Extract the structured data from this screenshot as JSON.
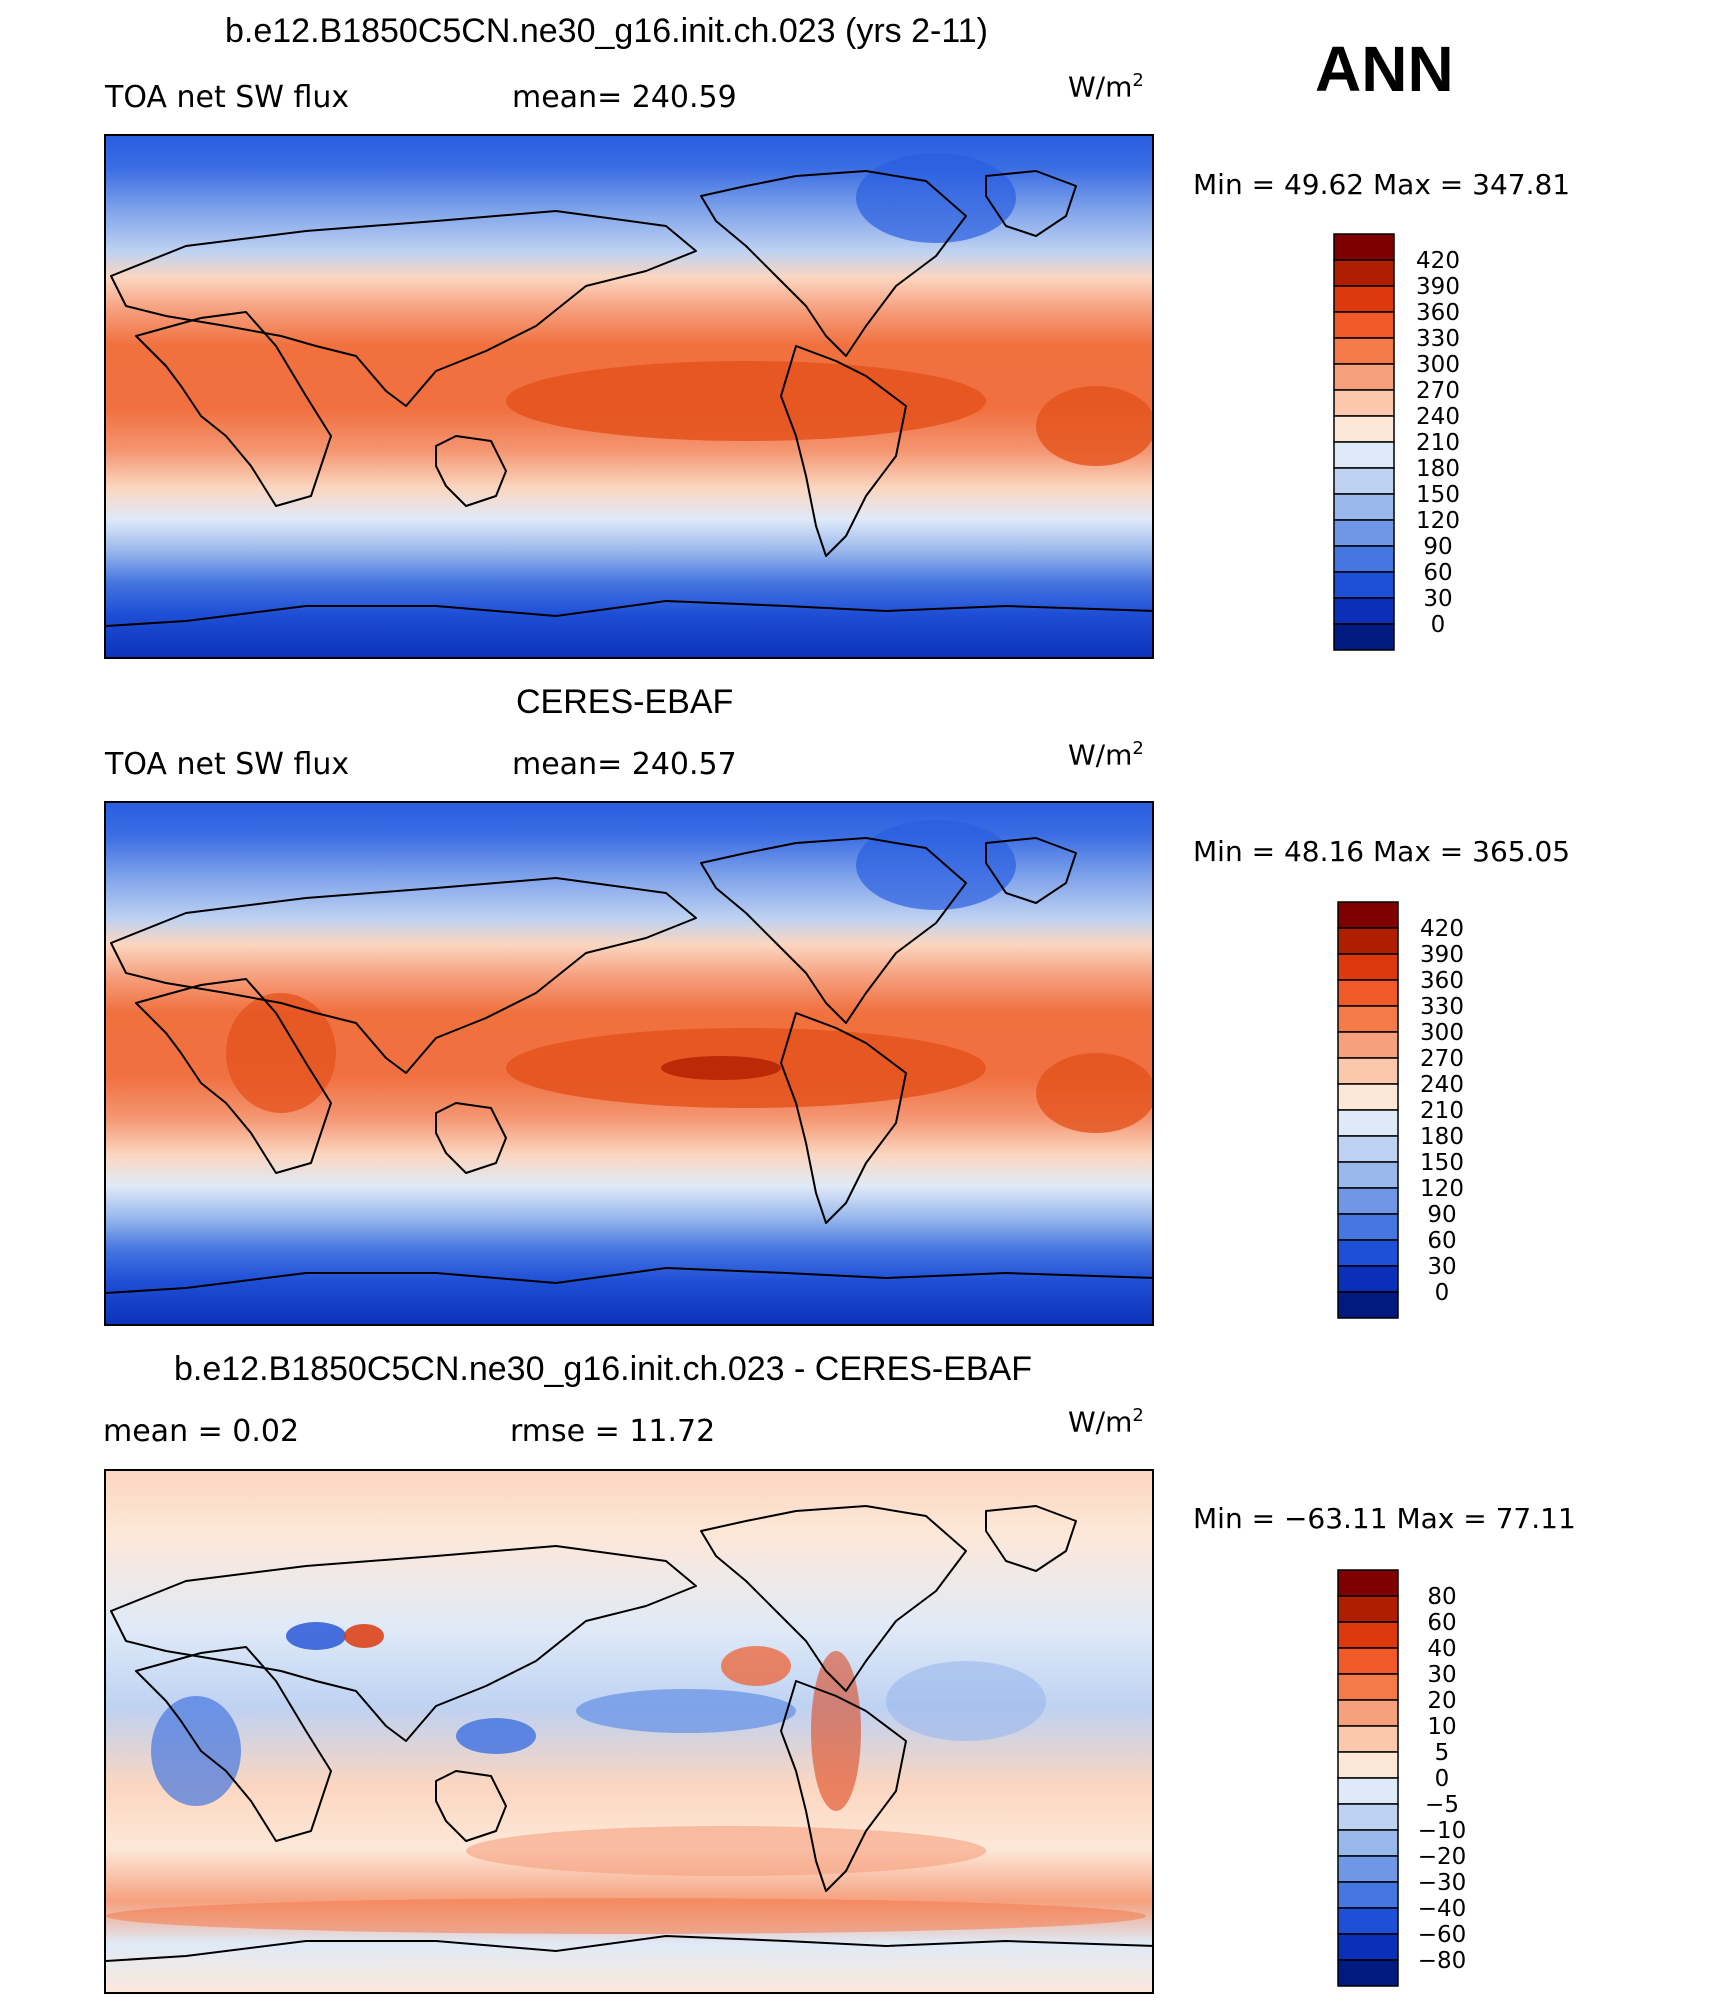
{
  "season": "ANN",
  "panels": [
    {
      "title": "b.e12.B1850C5CN.ne30_g16.init.ch.023 (yrs 2-11)",
      "left_label": "TOA net SW flux",
      "stat_label": "mean= 240.59",
      "units_base": "W/m",
      "units_sup": "2",
      "minmax": "Min =   49.62 Max = 347.81",
      "kind": "abs"
    },
    {
      "title": "CERES-EBAF",
      "left_label": "TOA net SW flux",
      "stat_label": "mean= 240.57",
      "units_base": "W/m",
      "units_sup": "2",
      "minmax": "Min =   48.16 Max = 365.05",
      "kind": "abs"
    },
    {
      "title": "b.e12.B1850C5CN.ne30_g16.init.ch.023 - CERES-EBAF",
      "left_label": "mean =     0.02",
      "stat_label": "rmse =    11.72",
      "units_base": "W/m",
      "units_sup": "2",
      "minmax": "Min = −63.11 Max =   77.11",
      "kind": "diff"
    }
  ],
  "colorbars": {
    "abs": {
      "labels": [
        "420",
        "390",
        "360",
        "330",
        "300",
        "270",
        "240",
        "210",
        "180",
        "150",
        "120",
        "90",
        "60",
        "30",
        "0"
      ],
      "colors": [
        "#7f0000",
        "#b01e00",
        "#dc3a0e",
        "#f05a28",
        "#f47a4a",
        "#f6a07e",
        "#fbc7ad",
        "#fde8d8",
        "#dfeaf8",
        "#bed2f2",
        "#99b8ec",
        "#6f97e6",
        "#4676e0",
        "#1f4fd6",
        "#0a30b8",
        "#001a80"
      ]
    },
    "diff": {
      "labels": [
        "80",
        "60",
        "40",
        "30",
        "20",
        "10",
        "5",
        "0",
        "−5",
        "−10",
        "−20",
        "−30",
        "−40",
        "−60",
        "−80"
      ],
      "colors": [
        "#7f0000",
        "#b01e00",
        "#dc3a0e",
        "#f05a28",
        "#f47a4a",
        "#f6a07e",
        "#fbc7ad",
        "#fde8d8",
        "#dfeaf8",
        "#bed2f2",
        "#99b8ec",
        "#6f97e6",
        "#4676e0",
        "#1f4fd6",
        "#0a30b8",
        "#001a80"
      ]
    }
  }
}
